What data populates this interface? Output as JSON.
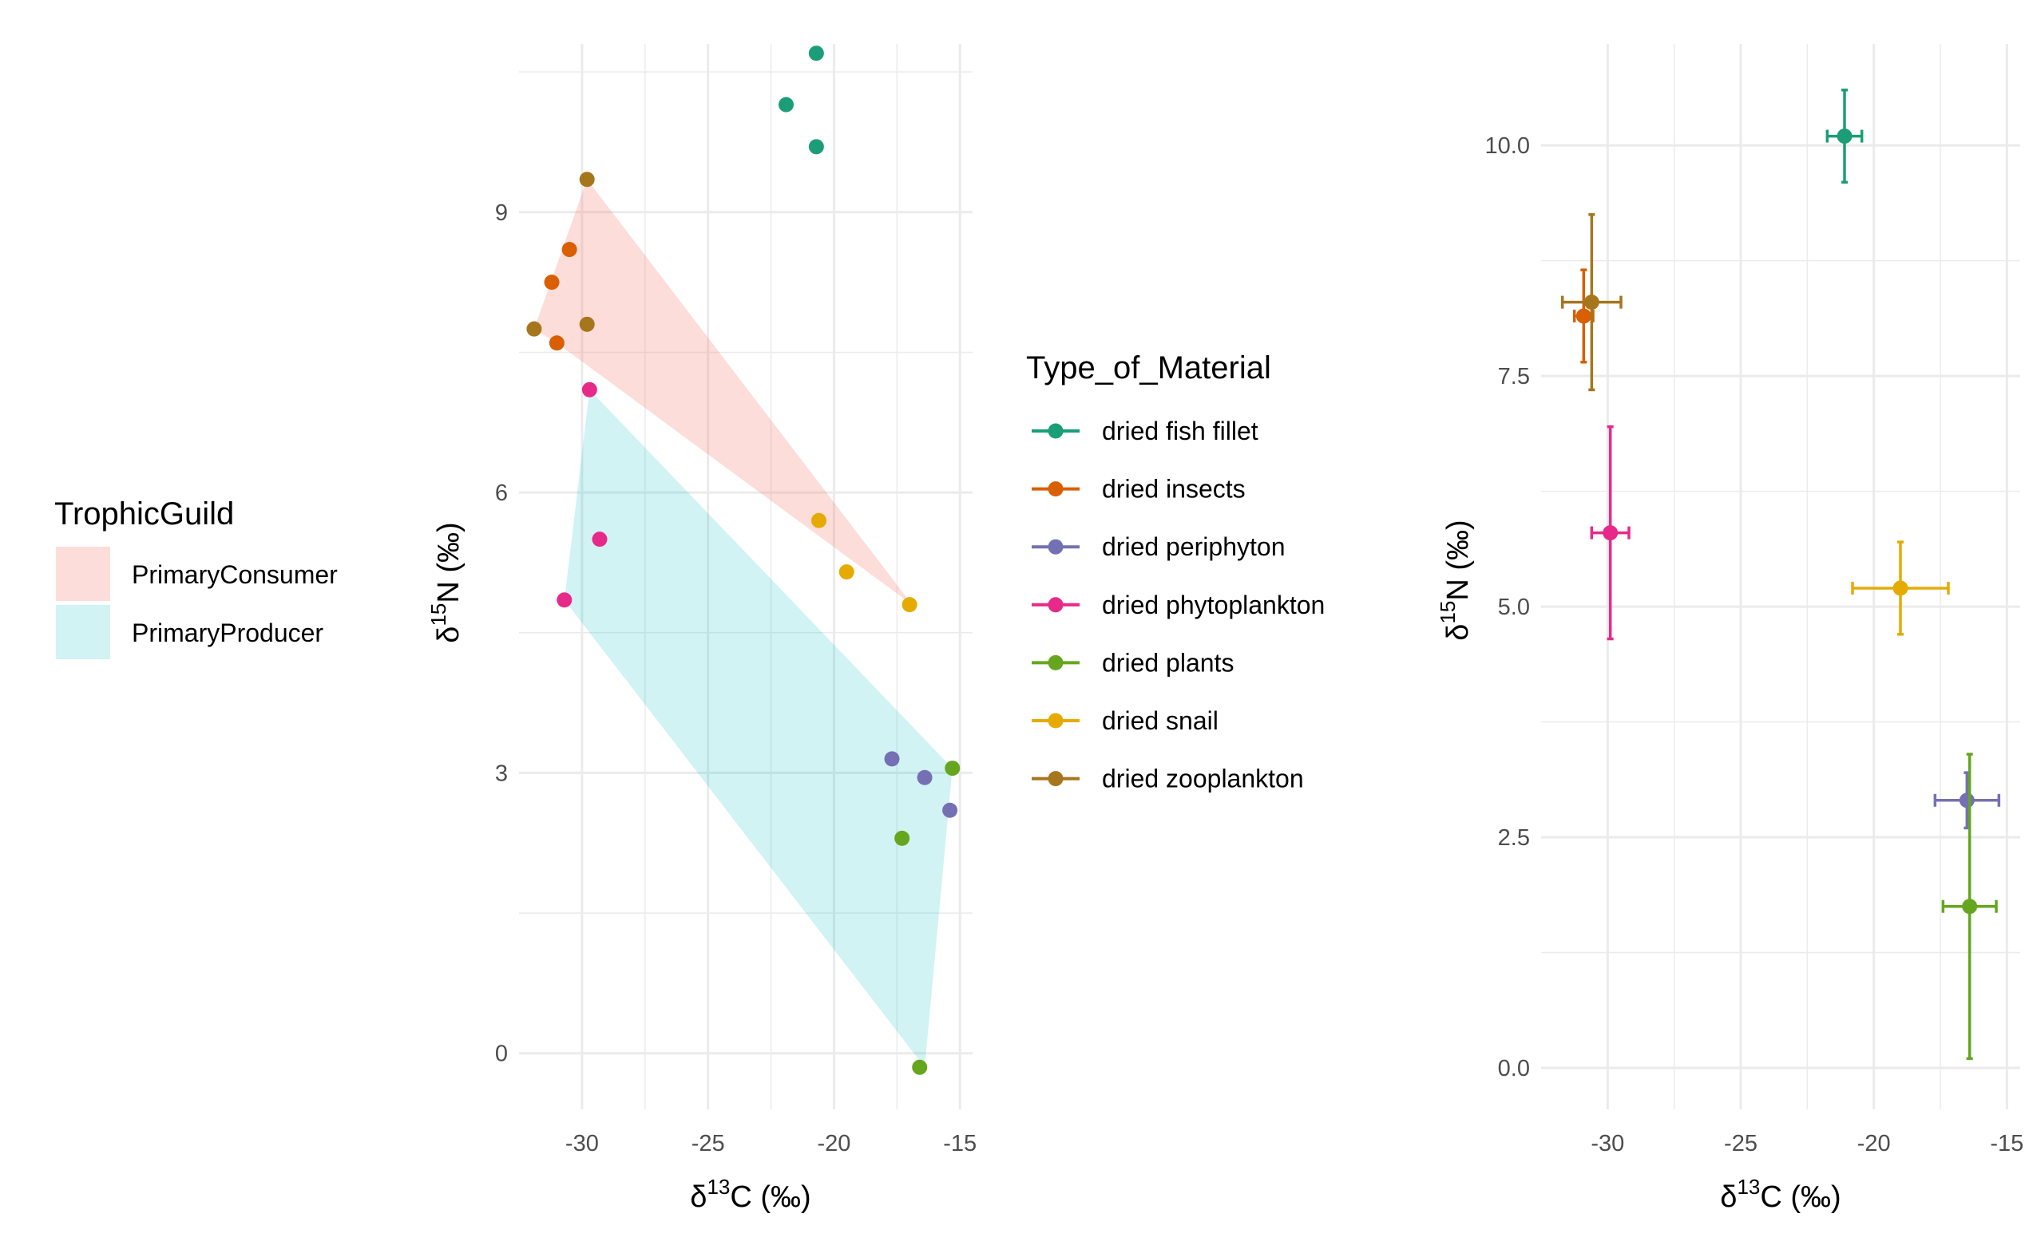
{
  "colors": {
    "dried fish fillet": "#1b9e77",
    "dried insects": "#d95f02",
    "dried periphyton": "#7570b3",
    "dried phytoplankton": "#e7298a",
    "dried plants": "#66a61e",
    "dried snail": "#e6ab02",
    "dried zooplankton": "#a6761d",
    "PrimaryConsumer": "#f8766d",
    "PrimaryProducer": "#00bfc4",
    "grid": "#ebebeb"
  },
  "legend_guild": {
    "title": "TrophicGuild",
    "items": [
      "PrimaryConsumer",
      "PrimaryProducer"
    ]
  },
  "legend_material": {
    "title": "Type_of_Material",
    "items": [
      "dried fish fillet",
      "dried insects",
      "dried periphyton",
      "dried phytoplankton",
      "dried plants",
      "dried snail",
      "dried zooplankton"
    ]
  },
  "chart_data": [
    {
      "type": "scatter",
      "xlabel": "δ13C (‰)",
      "ylabel": "δ15N (‰)",
      "xlim": [
        -32.5,
        -14.5
      ],
      "ylim": [
        -0.6,
        10.8
      ],
      "x_ticks": [
        -30,
        -25,
        -20,
        -15
      ],
      "y_ticks": [
        0,
        3,
        6,
        9
      ],
      "grid": true,
      "hulls": [
        {
          "group": "PrimaryConsumer",
          "points": [
            [
              -31.9,
              7.75
            ],
            [
              -29.8,
              9.35
            ],
            [
              -16.9,
              4.8
            ],
            [
              -31.0,
              7.6
            ]
          ]
        },
        {
          "group": "PrimaryProducer",
          "points": [
            [
              -30.7,
              4.85
            ],
            [
              -29.7,
              7.1
            ],
            [
              -15.3,
              3.05
            ],
            [
              -16.4,
              -0.15
            ]
          ]
        }
      ],
      "series": [
        {
          "name": "dried fish fillet",
          "points": [
            [
              -20.7,
              10.7
            ],
            [
              -21.9,
              10.15
            ],
            [
              -20.7,
              9.7
            ]
          ]
        },
        {
          "name": "dried insects",
          "points": [
            [
              -30.5,
              8.6
            ],
            [
              -31.2,
              8.25
            ],
            [
              -31.0,
              7.6
            ]
          ]
        },
        {
          "name": "dried periphyton",
          "points": [
            [
              -17.7,
              3.15
            ],
            [
              -16.4,
              2.95
            ],
            [
              -15.4,
              2.6
            ]
          ]
        },
        {
          "name": "dried phytoplankton",
          "points": [
            [
              -29.7,
              7.1
            ],
            [
              -29.3,
              5.5
            ],
            [
              -30.7,
              4.85
            ]
          ]
        },
        {
          "name": "dried plants",
          "points": [
            [
              -15.3,
              3.05
            ],
            [
              -17.3,
              2.3
            ],
            [
              -16.6,
              -0.15
            ]
          ]
        },
        {
          "name": "dried snail",
          "points": [
            [
              -20.6,
              5.7
            ],
            [
              -19.5,
              5.15
            ],
            [
              -17.0,
              4.8
            ]
          ]
        },
        {
          "name": "dried zooplankton",
          "points": [
            [
              -29.8,
              9.35
            ],
            [
              -29.8,
              7.8
            ],
            [
              -31.9,
              7.75
            ]
          ]
        }
      ]
    },
    {
      "type": "scatter",
      "xlabel": "δ13C (‰)",
      "ylabel": "δ15N (‰)",
      "xlim": [
        -32.5,
        -14.5
      ],
      "ylim": [
        -0.45,
        11.1
      ],
      "x_ticks": [
        -30,
        -25,
        -20,
        -15
      ],
      "y_ticks": [
        "0.0",
        "2.5",
        "5.0",
        "7.5",
        "10.0"
      ],
      "grid": true,
      "error_bars": true,
      "series": [
        {
          "name": "dried fish fillet",
          "x": -21.1,
          "y": 10.1,
          "x_err": 0.65,
          "y_err": 0.5
        },
        {
          "name": "dried insects",
          "x": -30.9,
          "y": 8.15,
          "x_err": 0.35,
          "y_err": 0.5
        },
        {
          "name": "dried periphyton",
          "x": -16.5,
          "y": 2.9,
          "x_err": 1.2,
          "y_err": 0.3
        },
        {
          "name": "dried phytoplankton",
          "x": -29.9,
          "y": 5.8,
          "x_err": 0.7,
          "y_err": 1.15
        },
        {
          "name": "dried plants",
          "x": -16.4,
          "y": 1.75,
          "x_err": 1.0,
          "y_err": 1.65
        },
        {
          "name": "dried snail",
          "x": -19.0,
          "y": 5.2,
          "x_err": 1.8,
          "y_err": 0.5
        },
        {
          "name": "dried zooplankton",
          "x": -30.6,
          "y": 8.3,
          "x_err": 1.1,
          "y_err": 0.95
        }
      ]
    }
  ]
}
